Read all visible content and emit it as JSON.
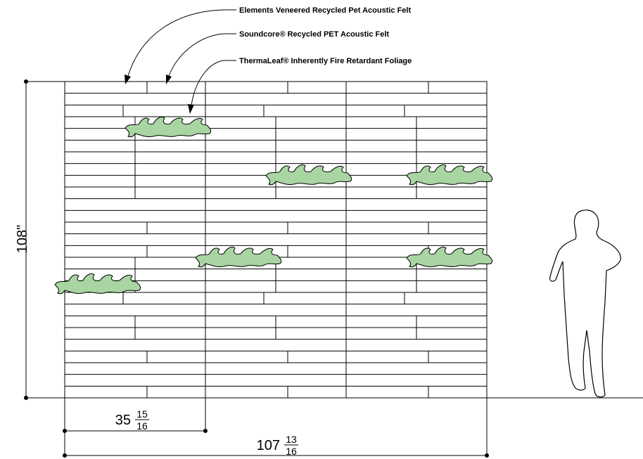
{
  "callouts": [
    {
      "label": "Elements Veneered Recycled Pet Acoustic Felt"
    },
    {
      "label": "Soundcore® Recycled PET Acoustic Felt"
    },
    {
      "label": "ThermaLeaf® Inherently Fire Retardant Foliage"
    }
  ],
  "dimensions": {
    "height": "108\"",
    "panel_width": {
      "whole": "35",
      "numerator": "15",
      "denominator": "16"
    },
    "total_width": {
      "whole": "107",
      "numerator": "13",
      "denominator": "16"
    }
  }
}
